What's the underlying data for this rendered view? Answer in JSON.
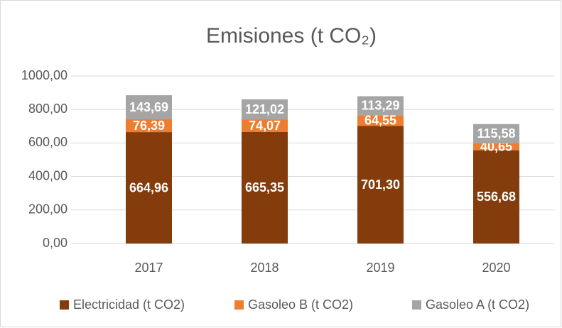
{
  "chart_data": {
    "type": "stacked_bar",
    "title": "Emisiones (t CO₂)",
    "categories": [
      "2017",
      "2018",
      "2019",
      "2020"
    ],
    "series": [
      {
        "name": "Electricidad (t CO2)",
        "color": "#843c0c",
        "values": [
          664.96,
          665.35,
          701.3,
          556.68
        ],
        "value_labels": [
          "664,96",
          "665,35",
          "701,30",
          "556,68"
        ]
      },
      {
        "name": "Gasoleo B (t CO2)",
        "color": "#ed7d31",
        "values": [
          76.39,
          74.07,
          64.55,
          40.65
        ],
        "value_labels": [
          "76,39",
          "74,07",
          "64,55",
          "40,65"
        ]
      },
      {
        "name": "Gasoleo A (t CO2)",
        "color": "#a5a5a5",
        "values": [
          143.69,
          121.02,
          113.29,
          115.58
        ],
        "value_labels": [
          "143,69",
          "121,02",
          "113,29",
          "115,58"
        ]
      }
    ],
    "ylim": [
      0,
      1000
    ],
    "yticks": [
      {
        "value": 0,
        "label": "0,00"
      },
      {
        "value": 200,
        "label": "200,00"
      },
      {
        "value": 400,
        "label": "400,00"
      },
      {
        "value": 600,
        "label": "600,00"
      },
      {
        "value": 800,
        "label": "800,00"
      },
      {
        "value": 1000,
        "label": "1000,00"
      }
    ],
    "grid": true,
    "legend": "bottom"
  }
}
